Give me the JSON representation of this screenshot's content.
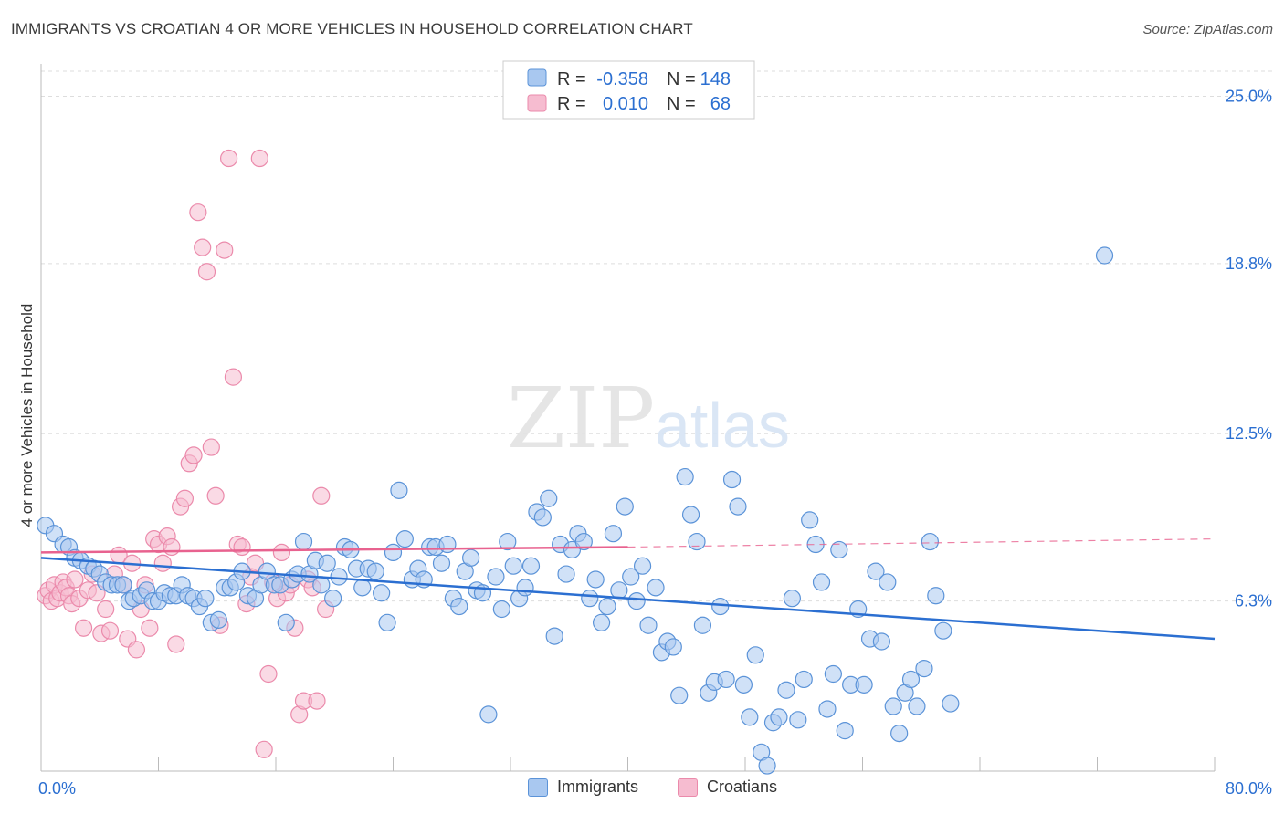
{
  "title": "IMMIGRANTS VS CROATIAN 4 OR MORE VEHICLES IN HOUSEHOLD CORRELATION CHART",
  "source": "Source: ZipAtlas.com",
  "watermark": {
    "zip": "ZIP",
    "atlas": "atlas"
  },
  "legend_top": {
    "rows": [
      {
        "r_label": "R =",
        "r_value": "-0.358",
        "n_label": "N =",
        "n_value": "148"
      },
      {
        "r_label": "R =",
        "r_value": "0.010",
        "n_label": "N =",
        "n_value": "68"
      }
    ]
  },
  "colors": {
    "immigrants_fill": "#a9c8f0",
    "immigrants_stroke": "#5b93d8",
    "immigrants_line": "#2b6fd1",
    "croatians_fill": "#f6bcd0",
    "croatians_stroke": "#eb8aab",
    "croatians_line": "#e8628f",
    "value_text": "#2b6fd1",
    "grid": "#dddddd"
  },
  "chart_data": {
    "type": "scatter",
    "title": "IMMIGRANTS VS CROATIAN 4 OR MORE VEHICLES IN HOUSEHOLD CORRELATION CHART",
    "xlabel": "",
    "ylabel": "4 or more Vehicles in Household",
    "xlim": [
      0,
      80
    ],
    "ylim": [
      0,
      26.2
    ],
    "x_tick_labels": [
      "0.0%",
      "80.0%"
    ],
    "y_ticks": [
      6.3,
      12.5,
      18.8,
      25.0
    ],
    "y_tick_labels": [
      "6.3%",
      "12.5%",
      "18.8%",
      "25.0%"
    ],
    "grid": true,
    "legend_position": "top-center",
    "series": [
      {
        "name": "Immigrants",
        "r": -0.358,
        "n": 148,
        "trend": {
          "x0": 0,
          "y0": 7.9,
          "x1": 80,
          "y1": 4.9
        },
        "points": [
          [
            0.3,
            9.1
          ],
          [
            0.9,
            8.8
          ],
          [
            1.5,
            8.4
          ],
          [
            1.9,
            8.3
          ],
          [
            2.3,
            7.9
          ],
          [
            2.7,
            7.8
          ],
          [
            3.2,
            7.6
          ],
          [
            3.6,
            7.5
          ],
          [
            4.0,
            7.3
          ],
          [
            4.4,
            7.0
          ],
          [
            4.8,
            6.9
          ],
          [
            5.2,
            6.9
          ],
          [
            5.6,
            6.9
          ],
          [
            6.0,
            6.3
          ],
          [
            6.3,
            6.4
          ],
          [
            6.8,
            6.5
          ],
          [
            7.2,
            6.7
          ],
          [
            7.6,
            6.3
          ],
          [
            8.0,
            6.3
          ],
          [
            8.4,
            6.6
          ],
          [
            8.8,
            6.5
          ],
          [
            9.2,
            6.5
          ],
          [
            9.6,
            6.9
          ],
          [
            10.0,
            6.5
          ],
          [
            10.4,
            6.4
          ],
          [
            10.8,
            6.1
          ],
          [
            11.2,
            6.4
          ],
          [
            11.6,
            5.5
          ],
          [
            12.1,
            5.6
          ],
          [
            12.5,
            6.8
          ],
          [
            12.9,
            6.8
          ],
          [
            13.3,
            7.0
          ],
          [
            13.7,
            7.4
          ],
          [
            14.1,
            6.5
          ],
          [
            14.6,
            6.4
          ],
          [
            15.0,
            6.9
          ],
          [
            15.4,
            7.4
          ],
          [
            15.9,
            6.9
          ],
          [
            16.3,
            6.9
          ],
          [
            16.7,
            5.5
          ],
          [
            17.1,
            7.1
          ],
          [
            17.5,
            7.3
          ],
          [
            17.9,
            8.5
          ],
          [
            18.3,
            7.3
          ],
          [
            18.7,
            7.8
          ],
          [
            19.1,
            6.9
          ],
          [
            19.5,
            7.7
          ],
          [
            19.9,
            6.4
          ],
          [
            20.3,
            7.2
          ],
          [
            20.7,
            8.3
          ],
          [
            21.1,
            8.2
          ],
          [
            21.5,
            7.5
          ],
          [
            21.9,
            6.8
          ],
          [
            22.3,
            7.5
          ],
          [
            22.8,
            7.4
          ],
          [
            23.2,
            6.6
          ],
          [
            23.6,
            5.5
          ],
          [
            24.0,
            8.1
          ],
          [
            24.4,
            10.4
          ],
          [
            24.8,
            8.6
          ],
          [
            25.3,
            7.1
          ],
          [
            25.7,
            7.5
          ],
          [
            26.1,
            7.1
          ],
          [
            26.5,
            8.3
          ],
          [
            26.9,
            8.3
          ],
          [
            27.3,
            7.7
          ],
          [
            27.7,
            8.4
          ],
          [
            28.1,
            6.4
          ],
          [
            28.5,
            6.1
          ],
          [
            28.9,
            7.4
          ],
          [
            29.3,
            7.9
          ],
          [
            29.7,
            6.7
          ],
          [
            30.1,
            6.6
          ],
          [
            30.5,
            2.1
          ],
          [
            31.0,
            7.2
          ],
          [
            31.4,
            6.0
          ],
          [
            31.8,
            8.5
          ],
          [
            32.2,
            7.6
          ],
          [
            32.6,
            6.4
          ],
          [
            33.0,
            6.8
          ],
          [
            33.4,
            7.6
          ],
          [
            33.8,
            9.6
          ],
          [
            34.2,
            9.4
          ],
          [
            34.6,
            10.1
          ],
          [
            35.0,
            5.0
          ],
          [
            35.4,
            8.4
          ],
          [
            35.8,
            7.3
          ],
          [
            36.2,
            8.2
          ],
          [
            36.6,
            8.8
          ],
          [
            37.0,
            8.5
          ],
          [
            37.4,
            6.4
          ],
          [
            37.8,
            7.1
          ],
          [
            38.2,
            5.5
          ],
          [
            38.6,
            6.1
          ],
          [
            39.0,
            8.8
          ],
          [
            39.4,
            6.7
          ],
          [
            39.8,
            9.8
          ],
          [
            40.2,
            7.2
          ],
          [
            40.6,
            6.3
          ],
          [
            41.0,
            7.6
          ],
          [
            41.4,
            5.4
          ],
          [
            41.9,
            6.8
          ],
          [
            42.3,
            4.4
          ],
          [
            42.7,
            4.8
          ],
          [
            43.1,
            4.6
          ],
          [
            43.5,
            2.8
          ],
          [
            43.9,
            10.9
          ],
          [
            44.3,
            9.5
          ],
          [
            44.7,
            8.5
          ],
          [
            45.1,
            5.4
          ],
          [
            45.5,
            2.9
          ],
          [
            45.9,
            3.3
          ],
          [
            46.3,
            6.1
          ],
          [
            46.7,
            3.4
          ],
          [
            47.1,
            10.8
          ],
          [
            47.5,
            9.8
          ],
          [
            47.9,
            3.2
          ],
          [
            48.3,
            2.0
          ],
          [
            48.7,
            4.3
          ],
          [
            49.1,
            0.7
          ],
          [
            49.5,
            0.2
          ],
          [
            49.9,
            1.8
          ],
          [
            50.3,
            2.0
          ],
          [
            50.8,
            3.0
          ],
          [
            51.2,
            6.4
          ],
          [
            51.6,
            1.9
          ],
          [
            52.0,
            3.4
          ],
          [
            52.4,
            9.3
          ],
          [
            52.8,
            8.4
          ],
          [
            53.2,
            7.0
          ],
          [
            53.6,
            2.3
          ],
          [
            54.0,
            3.6
          ],
          [
            54.4,
            8.2
          ],
          [
            54.8,
            1.5
          ],
          [
            55.2,
            3.2
          ],
          [
            55.7,
            6.0
          ],
          [
            56.1,
            3.2
          ],
          [
            56.5,
            4.9
          ],
          [
            56.9,
            7.4
          ],
          [
            57.3,
            4.8
          ],
          [
            57.7,
            7.0
          ],
          [
            58.1,
            2.4
          ],
          [
            58.5,
            1.4
          ],
          [
            58.9,
            2.9
          ],
          [
            59.3,
            3.4
          ],
          [
            59.7,
            2.4
          ],
          [
            60.2,
            3.8
          ],
          [
            60.6,
            8.5
          ],
          [
            61.0,
            6.5
          ],
          [
            61.5,
            5.2
          ],
          [
            62.0,
            2.5
          ],
          [
            72.5,
            19.1
          ]
        ]
      },
      {
        "name": "Croatians",
        "r": 0.01,
        "n": 68,
        "trend": {
          "x0": 0,
          "y0": 8.1,
          "x1": 40,
          "y1": 8.3,
          "dash_x1": 80,
          "dash_y1": 8.6
        },
        "points": [
          [
            0.3,
            6.5
          ],
          [
            0.5,
            6.7
          ],
          [
            0.7,
            6.3
          ],
          [
            0.9,
            6.9
          ],
          [
            1.1,
            6.4
          ],
          [
            1.3,
            6.6
          ],
          [
            1.5,
            7.0
          ],
          [
            1.7,
            6.8
          ],
          [
            1.9,
            6.5
          ],
          [
            2.1,
            6.2
          ],
          [
            2.3,
            7.1
          ],
          [
            2.6,
            6.4
          ],
          [
            2.9,
            5.3
          ],
          [
            3.2,
            6.7
          ],
          [
            3.5,
            7.3
          ],
          [
            3.8,
            6.6
          ],
          [
            4.1,
            5.1
          ],
          [
            4.4,
            6.0
          ],
          [
            4.7,
            5.2
          ],
          [
            5.0,
            7.3
          ],
          [
            5.3,
            8.0
          ],
          [
            5.6,
            6.9
          ],
          [
            5.9,
            4.9
          ],
          [
            6.2,
            7.7
          ],
          [
            6.5,
            4.5
          ],
          [
            6.8,
            6.0
          ],
          [
            7.1,
            6.9
          ],
          [
            7.4,
            5.3
          ],
          [
            7.7,
            8.6
          ],
          [
            8.0,
            8.4
          ],
          [
            8.3,
            7.7
          ],
          [
            8.6,
            8.7
          ],
          [
            8.9,
            8.3
          ],
          [
            9.2,
            4.7
          ],
          [
            9.5,
            9.8
          ],
          [
            9.8,
            10.1
          ],
          [
            10.1,
            11.4
          ],
          [
            10.4,
            11.7
          ],
          [
            10.7,
            20.7
          ],
          [
            11.0,
            19.4
          ],
          [
            11.3,
            18.5
          ],
          [
            11.6,
            12.0
          ],
          [
            11.9,
            10.2
          ],
          [
            12.2,
            5.4
          ],
          [
            12.5,
            19.3
          ],
          [
            12.8,
            22.7
          ],
          [
            13.1,
            14.6
          ],
          [
            13.4,
            8.4
          ],
          [
            13.7,
            8.3
          ],
          [
            14.0,
            6.2
          ],
          [
            14.3,
            7.2
          ],
          [
            14.6,
            7.7
          ],
          [
            14.9,
            22.7
          ],
          [
            15.2,
            0.8
          ],
          [
            15.5,
            3.6
          ],
          [
            15.8,
            7.0
          ],
          [
            16.1,
            6.4
          ],
          [
            16.4,
            8.1
          ],
          [
            16.7,
            6.6
          ],
          [
            17.0,
            6.9
          ],
          [
            17.3,
            5.3
          ],
          [
            17.6,
            2.1
          ],
          [
            17.9,
            2.6
          ],
          [
            18.2,
            7.1
          ],
          [
            18.5,
            6.8
          ],
          [
            18.8,
            2.6
          ],
          [
            19.1,
            10.2
          ],
          [
            19.4,
            6.0
          ]
        ]
      }
    ]
  },
  "legend_bottom": [
    {
      "label": "Immigrants"
    },
    {
      "label": "Croatians"
    }
  ]
}
